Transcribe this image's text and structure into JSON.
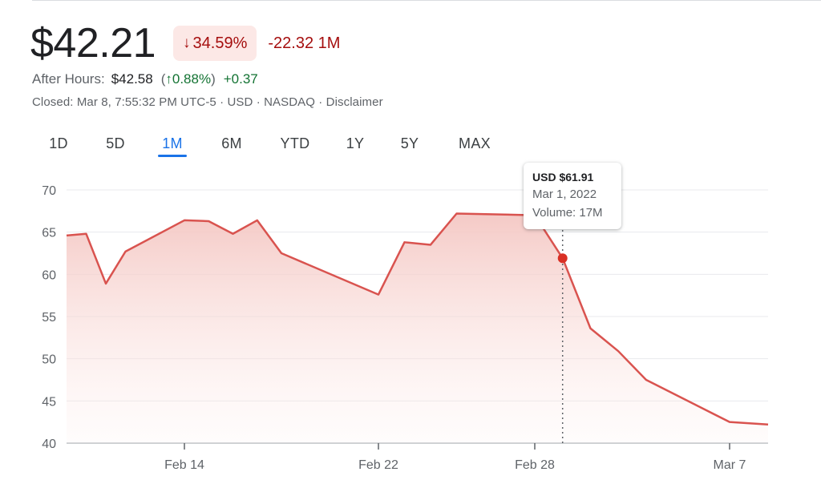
{
  "quote": {
    "price": "$42.21",
    "change_pct": "34.59%",
    "change_arrow": "↓",
    "change_abs": "-22.32 1M"
  },
  "after_hours": {
    "label": "After Hours:",
    "price": "$42.58",
    "open_paren": "(",
    "pct_arrow": "↑",
    "pct": "0.88%",
    "close_paren": ")",
    "abs": "+0.37"
  },
  "closed_line": "Closed: Mar 8, 7:55:32 PM UTC-5 · USD · NASDAQ · Disclaimer",
  "ranges": [
    "1D",
    "5D",
    "1M",
    "6M",
    "YTD",
    "1Y",
    "5Y",
    "MAX"
  ],
  "active_range": "1M",
  "tooltip": {
    "price": "USD $61.91",
    "date": "Mar 1, 2022",
    "volume": "Volume: 17M"
  },
  "colors": {
    "line": "#d9534f",
    "fill_top": "#f4c7c3",
    "down": "#a50e0e",
    "up": "#137333",
    "accent": "#1a73e8"
  },
  "chart_data": {
    "type": "area",
    "ylim": [
      40,
      70
    ],
    "y_ticks": [
      70,
      65,
      60,
      55,
      50,
      45,
      40
    ],
    "x_ticks": [
      "Feb 14",
      "Feb 22",
      "Feb 28",
      "Mar 7"
    ],
    "grid": true,
    "highlighted_point": {
      "x": "Mar 1",
      "y": 61.91
    },
    "series": [
      {
        "x": [
          "Feb 8",
          "Feb 9",
          "Feb 10",
          "Feb 11",
          "Feb 14",
          "Feb 15",
          "Feb 16",
          "Feb 17",
          "Feb 18",
          "Feb 22",
          "Feb 23",
          "Feb 24",
          "Feb 25",
          "Feb 28",
          "Mar 1",
          "Mar 2",
          "Mar 3",
          "Mar 4",
          "Mar 7",
          "Mar 8"
        ],
        "values": [
          64.6,
          64.8,
          58.9,
          62.7,
          66.4,
          66.3,
          64.8,
          66.4,
          62.5,
          57.6,
          63.8,
          63.5,
          67.2,
          67.0,
          61.91,
          53.6,
          50.9,
          47.5,
          42.5,
          42.21
        ]
      }
    ]
  }
}
